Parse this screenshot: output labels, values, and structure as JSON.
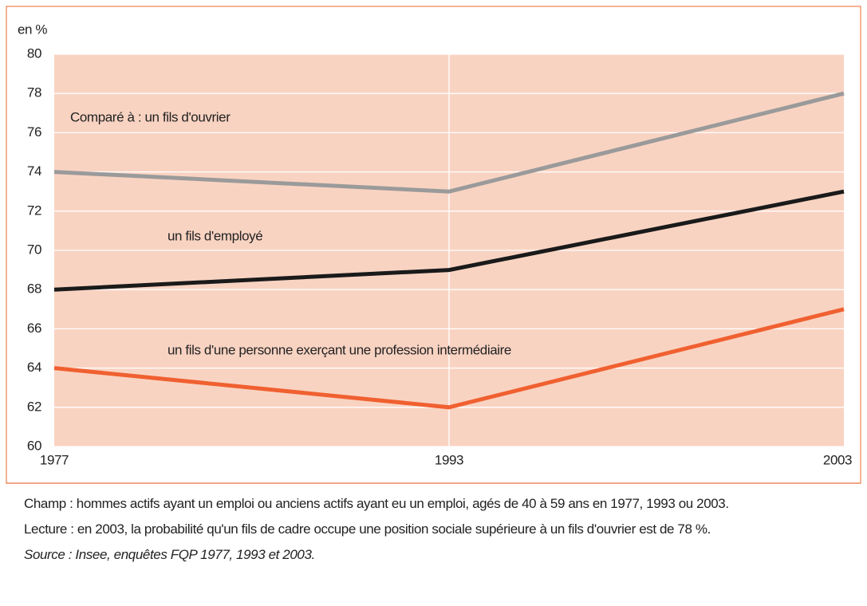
{
  "chart_data": {
    "type": "line",
    "y_label": "en %",
    "categories": [
      "1977",
      "1993",
      "2003"
    ],
    "series": [
      {
        "name": "Comparé à : un fils d'ouvrier",
        "color": "#9a9a9a",
        "values": [
          74,
          73,
          78
        ]
      },
      {
        "name": "un fils d'employé",
        "color": "#1a1a1a",
        "values": [
          68,
          69,
          73
        ]
      },
      {
        "name": "un fils d'une personne exerçant une profession intermédiaire",
        "color": "#f06030",
        "values": [
          64,
          62,
          67
        ]
      }
    ],
    "ylim": [
      60,
      80
    ],
    "yticks": [
      60,
      62,
      64,
      66,
      68,
      70,
      72,
      74,
      76,
      78,
      80
    ],
    "grid": true,
    "background": "#f9d3c2"
  },
  "notes": {
    "champ": "Champ : hommes actifs ayant un emploi ou anciens actifs ayant eu un emploi, agés de 40 à 59 ans en 1977, 1993 ou 2003.",
    "lecture": "Lecture : en 2003, la probabilité qu'un fils de cadre occupe une position sociale supérieure à un fils d'ouvrier est de 78 %.",
    "source": "Source : Insee, enquêtes FQP 1977, 1993 et 2003."
  }
}
